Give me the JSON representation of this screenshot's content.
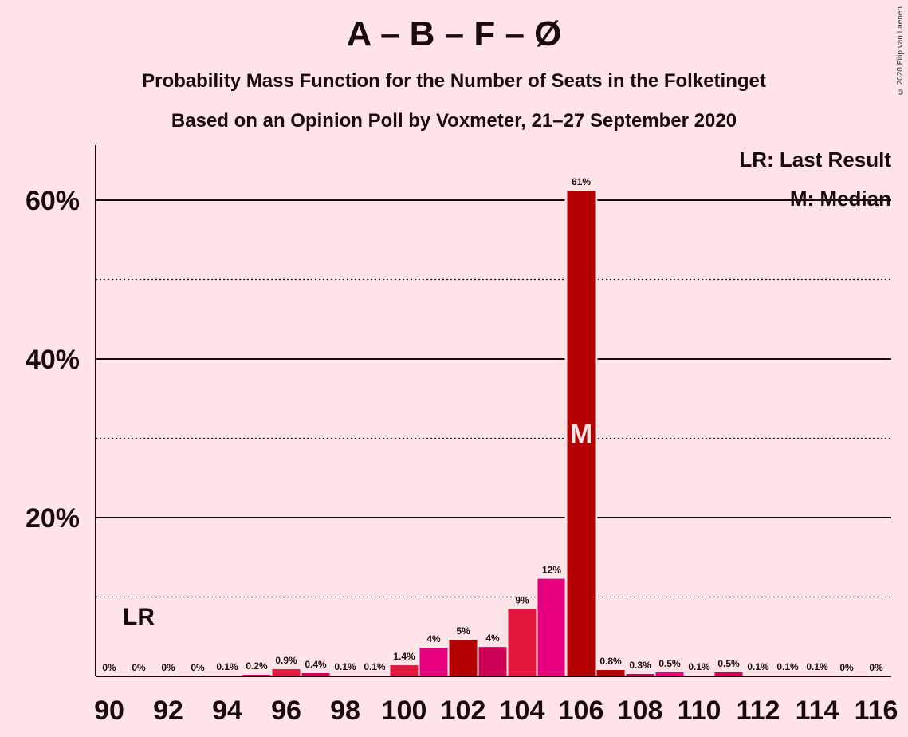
{
  "title": "A – B – F – Ø",
  "subtitle1": "Probability Mass Function for the Number of Seats in the Folketinget",
  "subtitle2": "Based on an Opinion Poll by Voxmeter, 21–27 September 2020",
  "copyright": "© 2020 Filip van Laenen",
  "legend": {
    "lr": "LR: Last Result",
    "median": "M: Median"
  },
  "markers": {
    "lr_label": "LR",
    "lr_seat": 91,
    "median_label": "M",
    "median_seat": 106
  },
  "colors": {
    "a": "#B30000",
    "b": "#E6007E",
    "f": "#E3173E",
    "o": "#CC0055",
    "background": "#FFE4E8"
  },
  "chart_data": {
    "type": "bar",
    "x": [
      90,
      91,
      92,
      93,
      94,
      95,
      96,
      97,
      98,
      99,
      100,
      101,
      102,
      103,
      104,
      105,
      106,
      107,
      108,
      109,
      110,
      111,
      112,
      113,
      114,
      115,
      116
    ],
    "values": [
      0,
      0,
      0,
      0,
      0.1,
      0.2,
      0.9,
      0.4,
      0.1,
      0.1,
      1.4,
      3.6,
      4.6,
      3.7,
      8.5,
      12.3,
      61.2,
      0.8,
      0.3,
      0.5,
      0.1,
      0.5,
      0.1,
      0.1,
      0.1,
      0,
      0
    ],
    "labels": [
      "0%",
      "0%",
      "0%",
      "0%",
      "0.1%",
      "0.2%",
      "0.9%",
      "0.4%",
      "0.1%",
      "0.1%",
      "1.4%",
      "4%",
      "5%",
      "4%",
      "9%",
      "12%",
      "61%",
      "0.8%",
      "0.3%",
      "0.5%",
      "0.1%",
      "0.5%",
      "0.1%",
      "0.1%",
      "0.1%",
      "0%",
      "0%"
    ],
    "bar_colors": [
      "#B30000",
      "#E6007E",
      "#E3173E",
      "#CC0055",
      "#B30000",
      "#E6007E",
      "#E3173E",
      "#CC0055",
      "#B30000",
      "#E6007E",
      "#E3173E",
      "#E6007E",
      "#B30000",
      "#CC0055",
      "#E3173E",
      "#E6007E",
      "#B30000",
      "#B30000",
      "#CC0055",
      "#E6007E",
      "#E3173E",
      "#CC0055",
      "#B30000",
      "#E6007E",
      "#E3173E",
      "#CC0055",
      "#B30000"
    ],
    "x_tick_labels": [
      "90",
      "92",
      "94",
      "96",
      "98",
      "100",
      "102",
      "104",
      "106",
      "108",
      "110",
      "112",
      "114",
      "116"
    ],
    "x_tick_values": [
      90,
      92,
      94,
      96,
      98,
      100,
      102,
      104,
      106,
      108,
      110,
      112,
      114,
      116
    ],
    "y_tick_labels": [
      "20%",
      "40%",
      "60%"
    ],
    "y_tick_values": [
      20,
      40,
      60
    ],
    "ylim": [
      0,
      67
    ],
    "grid": true,
    "legend_position": "top-right"
  }
}
